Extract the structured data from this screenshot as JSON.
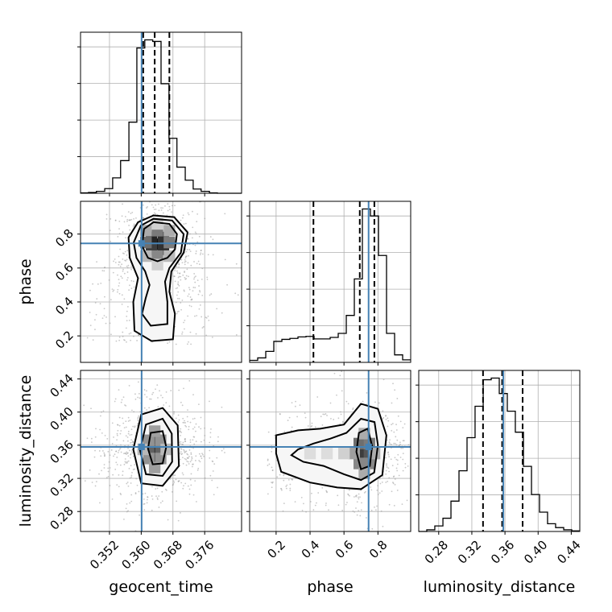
{
  "chart_data": {
    "type": "corner",
    "parameters": [
      "geocent_time",
      "phase",
      "luminosity_distance"
    ],
    "truth_color": "#4682b4",
    "truths": {
      "geocent_time": 0.3601,
      "phase": 0.745,
      "luminosity_distance": 0.358
    },
    "axes": {
      "geocent_time": {
        "label": "geocent_time",
        "range": [
          0.3447,
          0.3853
        ],
        "ticks": [
          0.352,
          0.36,
          0.368,
          0.376
        ],
        "tick_labels": [
          "0.352",
          "0.360",
          "0.368",
          "0.376"
        ]
      },
      "phase": {
        "label": "phase",
        "range": [
          0.044,
          0.993
        ],
        "ticks": [
          0.2,
          0.4,
          0.6,
          0.8
        ],
        "tick_labels": [
          "0.2",
          "0.4",
          "0.6",
          "0.8"
        ]
      },
      "luminosity_distance": {
        "label": "luminosity_distance",
        "range": [
          0.2559,
          0.4503
        ],
        "ticks": [
          0.28,
          0.32,
          0.36,
          0.4,
          0.44
        ],
        "tick_labels": [
          "0.28",
          "0.32",
          "0.36",
          "0.40",
          "0.44"
        ]
      }
    },
    "diagonal": [
      {
        "param": "geocent_time",
        "quantiles": [
          0.3605,
          0.3634,
          0.3671
        ],
        "bins": [
          0.3447,
          0.3467,
          0.3487,
          0.3508,
          0.3528,
          0.3548,
          0.3569,
          0.3589,
          0.3609,
          0.3629,
          0.365,
          0.367,
          0.369,
          0.3711,
          0.3731,
          0.3751,
          0.3772,
          0.3792,
          0.3812,
          0.3833,
          0.3853
        ],
        "counts": [
          1,
          2,
          5,
          12,
          40,
          85,
          185,
          378,
          399,
          395,
          285,
          143,
          68,
          34,
          11,
          5,
          1,
          0,
          0,
          0
        ]
      },
      {
        "param": "phase",
        "quantiles": [
          0.42,
          0.693,
          0.779
        ],
        "bins": [
          0.044,
          0.0915,
          0.139,
          0.1864,
          0.2339,
          0.2813,
          0.3288,
          0.3762,
          0.4237,
          0.4711,
          0.5186,
          0.566,
          0.6135,
          0.6609,
          0.7084,
          0.7558,
          0.8033,
          0.8507,
          0.8982,
          0.9456,
          0.993
        ],
        "counts": [
          4,
          9,
          22,
          42,
          46,
          48,
          51,
          52,
          47,
          47,
          50,
          58,
          94,
          167,
          307,
          293,
          214,
          58,
          15,
          5
        ]
      },
      {
        "param": "luminosity_distance",
        "quantiles": [
          0.3335,
          0.3566,
          0.3813
        ],
        "bins": [
          0.2559,
          0.2656,
          0.2753,
          0.2851,
          0.2948,
          0.3045,
          0.3142,
          0.3239,
          0.3337,
          0.3434,
          0.3531,
          0.3628,
          0.3725,
          0.3823,
          0.392,
          0.4017,
          0.4114,
          0.4211,
          0.4309,
          0.4406,
          0.4503
        ],
        "counts": [
          0,
          3,
          10,
          24,
          55,
          110,
          170,
          227,
          275,
          278,
          250,
          218,
          180,
          118,
          67,
          35,
          14,
          7,
          3,
          1
        ]
      }
    ],
    "joint": [
      {
        "x": "geocent_time",
        "y": "phase",
        "peak": [
          0.3641,
          0.74
        ],
        "contours": [
          [
            [
              0.3607,
              0.83
            ],
            [
              0.3631,
              0.87
            ],
            [
              0.3671,
              0.86
            ],
            [
              0.369,
              0.8
            ],
            [
              0.3685,
              0.71
            ],
            [
              0.3666,
              0.66
            ],
            [
              0.3641,
              0.64
            ],
            [
              0.3617,
              0.66
            ],
            [
              0.3602,
              0.73
            ]
          ],
          [
            [
              0.3599,
              0.85
            ],
            [
              0.3631,
              0.89
            ],
            [
              0.3678,
              0.88
            ],
            [
              0.3707,
              0.8
            ],
            [
              0.37,
              0.69
            ],
            [
              0.3671,
              0.6
            ],
            [
              0.366,
              0.52
            ],
            [
              0.3666,
              0.4
            ],
            [
              0.3666,
              0.27
            ],
            [
              0.3624,
              0.26
            ],
            [
              0.3602,
              0.33
            ],
            [
              0.3611,
              0.42
            ],
            [
              0.3621,
              0.5
            ],
            [
              0.361,
              0.58
            ],
            [
              0.3588,
              0.66
            ],
            [
              0.3581,
              0.75
            ]
          ],
          [
            [
              0.3592,
              0.87
            ],
            [
              0.3631,
              0.91
            ],
            [
              0.3683,
              0.9
            ],
            [
              0.3717,
              0.81
            ],
            [
              0.3707,
              0.69
            ],
            [
              0.3676,
              0.58
            ],
            [
              0.3671,
              0.46
            ],
            [
              0.3685,
              0.33
            ],
            [
              0.368,
              0.18
            ],
            [
              0.3626,
              0.17
            ],
            [
              0.3583,
              0.23
            ],
            [
              0.358,
              0.4
            ],
            [
              0.3592,
              0.54
            ],
            [
              0.3571,
              0.66
            ],
            [
              0.3568,
              0.78
            ]
          ]
        ],
        "point_density_cells": [
          [
            0.3641,
            0.74,
            1.0
          ],
          [
            0.3626,
            0.78,
            0.85
          ],
          [
            0.3656,
            0.78,
            0.8
          ],
          [
            0.3626,
            0.71,
            0.75
          ],
          [
            0.3656,
            0.71,
            0.8
          ],
          [
            0.3612,
            0.75,
            0.55
          ],
          [
            0.3671,
            0.75,
            0.5
          ],
          [
            0.3641,
            0.82,
            0.5
          ],
          [
            0.3641,
            0.67,
            0.45
          ],
          [
            0.3612,
            0.82,
            0.3
          ],
          [
            0.3671,
            0.82,
            0.3
          ],
          [
            0.3612,
            0.67,
            0.25
          ],
          [
            0.3671,
            0.67,
            0.25
          ],
          [
            0.3641,
            0.62,
            0.15
          ],
          [
            0.3641,
            0.86,
            0.15
          ]
        ]
      },
      {
        "x": "geocent_time",
        "y": "luminosity_distance",
        "peak": [
          0.3634,
          0.355
        ],
        "contours": [
          [
            [
              0.3624,
              0.375
            ],
            [
              0.3654,
              0.377
            ],
            [
              0.3663,
              0.358
            ],
            [
              0.3654,
              0.338
            ],
            [
              0.3629,
              0.337
            ],
            [
              0.3617,
              0.356
            ]
          ],
          [
            [
              0.3612,
              0.385
            ],
            [
              0.3654,
              0.392
            ],
            [
              0.3677,
              0.374
            ],
            [
              0.3678,
              0.34
            ],
            [
              0.3654,
              0.323
            ],
            [
              0.3612,
              0.325
            ],
            [
              0.3597,
              0.354
            ]
          ],
          [
            [
              0.36,
              0.397
            ],
            [
              0.3654,
              0.405
            ],
            [
              0.3692,
              0.384
            ],
            [
              0.3695,
              0.335
            ],
            [
              0.3654,
              0.311
            ],
            [
              0.36,
              0.314
            ],
            [
              0.358,
              0.355
            ]
          ]
        ],
        "point_density_cells": [
          [
            0.3634,
            0.355,
            1.0
          ],
          [
            0.3634,
            0.366,
            0.8
          ],
          [
            0.3634,
            0.344,
            0.8
          ],
          [
            0.3619,
            0.355,
            0.6
          ],
          [
            0.3649,
            0.355,
            0.6
          ],
          [
            0.3619,
            0.366,
            0.4
          ],
          [
            0.3649,
            0.366,
            0.4
          ],
          [
            0.3619,
            0.344,
            0.4
          ],
          [
            0.3649,
            0.344,
            0.4
          ],
          [
            0.3634,
            0.377,
            0.35
          ],
          [
            0.3634,
            0.333,
            0.35
          ],
          [
            0.3605,
            0.355,
            0.25
          ],
          [
            0.3663,
            0.355,
            0.25
          ]
        ]
      },
      {
        "x": "phase",
        "y": "luminosity_distance",
        "peak": [
          0.72,
          0.35
        ],
        "contours": [
          [
            [
              0.688,
              0.375
            ],
            [
              0.74,
              0.38
            ],
            [
              0.766,
              0.359
            ],
            [
              0.752,
              0.335
            ],
            [
              0.7,
              0.331
            ],
            [
              0.673,
              0.352
            ]
          ],
          [
            [
              0.615,
              0.375
            ],
            [
              0.7,
              0.392
            ],
            [
              0.78,
              0.388
            ],
            [
              0.8,
              0.36
            ],
            [
              0.778,
              0.327
            ],
            [
              0.7,
              0.318
            ],
            [
              0.6,
              0.325
            ],
            [
              0.48,
              0.335
            ],
            [
              0.36,
              0.34
            ],
            [
              0.29,
              0.348
            ],
            [
              0.33,
              0.355
            ],
            [
              0.42,
              0.362
            ],
            [
              0.52,
              0.368
            ]
          ],
          [
            [
              0.6,
              0.385
            ],
            [
              0.7,
              0.41
            ],
            [
              0.8,
              0.404
            ],
            [
              0.85,
              0.372
            ],
            [
              0.826,
              0.324
            ],
            [
              0.7,
              0.307
            ],
            [
              0.56,
              0.309
            ],
            [
              0.4,
              0.315
            ],
            [
              0.23,
              0.328
            ],
            [
              0.2,
              0.35
            ],
            [
              0.2,
              0.372
            ],
            [
              0.33,
              0.378
            ],
            [
              0.46,
              0.38
            ]
          ]
        ],
        "point_density_cells": [
          [
            0.72,
            0.35,
            1.0
          ],
          [
            0.72,
            0.362,
            0.8
          ],
          [
            0.72,
            0.338,
            0.7
          ],
          [
            0.69,
            0.35,
            0.75
          ],
          [
            0.75,
            0.35,
            0.65
          ],
          [
            0.69,
            0.362,
            0.55
          ],
          [
            0.75,
            0.362,
            0.5
          ],
          [
            0.69,
            0.338,
            0.45
          ],
          [
            0.75,
            0.338,
            0.45
          ],
          [
            0.66,
            0.35,
            0.35
          ],
          [
            0.78,
            0.35,
            0.3
          ],
          [
            0.72,
            0.374,
            0.3
          ],
          [
            0.72,
            0.326,
            0.3
          ],
          [
            0.6,
            0.35,
            0.15
          ],
          [
            0.5,
            0.35,
            0.1
          ],
          [
            0.4,
            0.35,
            0.1
          ]
        ]
      }
    ]
  }
}
